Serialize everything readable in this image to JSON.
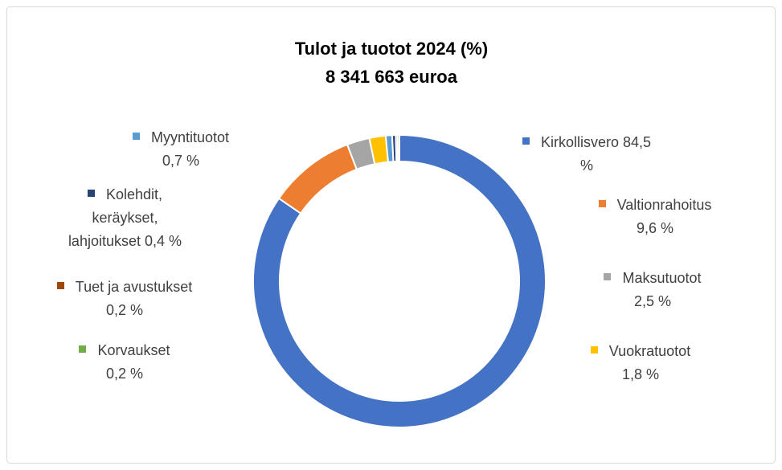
{
  "chart_data": {
    "type": "donut",
    "title": "Tulot ja tuotot 2024 (%)",
    "subtitle": "8 341 663 euroa",
    "categories": [
      "Kirkollisvero",
      "Valtionrahoitus",
      "Maksutuotot",
      "Vuokratuotot",
      "Myyntituotot",
      "Kolehdit, keräykset, lahjoitukset",
      "Tuet ja avustukset",
      "Korvaukset"
    ],
    "values": [
      84.5,
      9.6,
      2.5,
      1.8,
      0.7,
      0.4,
      0.2,
      0.2
    ],
    "value_labels": [
      "84,5 %",
      "9,6 %",
      "2,5 %",
      "1,8 %",
      "0,7 %",
      "0,4 %",
      "0,2 %",
      "0,2 %"
    ],
    "colors": [
      "#4472c4",
      "#ed7d31",
      "#a5a5a5",
      "#ffc000",
      "#5b9bd5",
      "#264478",
      "#9e480e",
      "#70ad47"
    ]
  }
}
